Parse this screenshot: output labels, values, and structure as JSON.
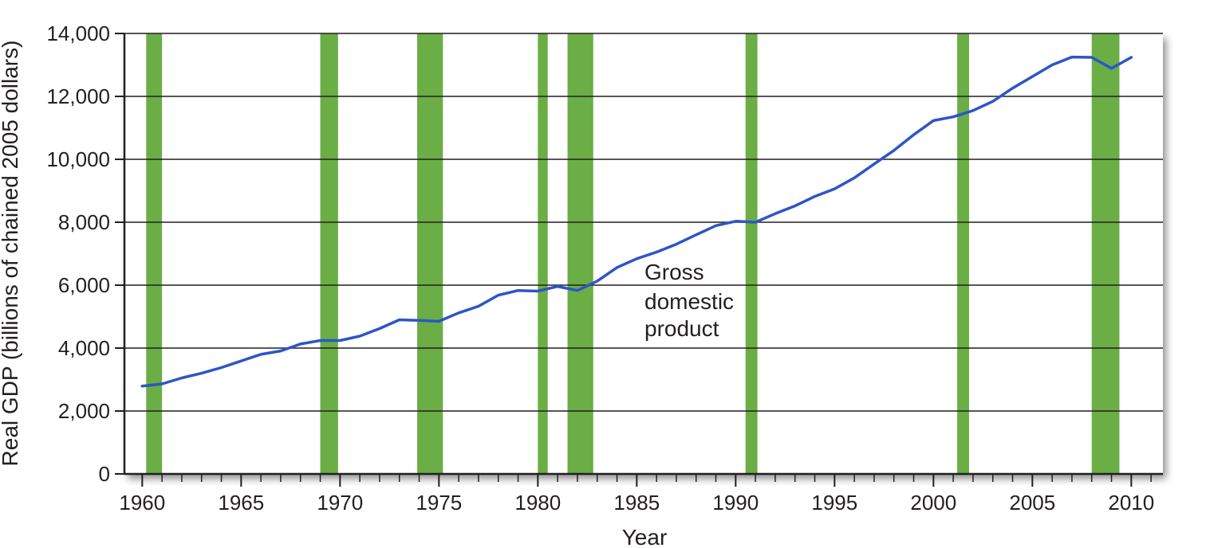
{
  "colors": {
    "line": "#2e55c7",
    "recession": "#6aae45",
    "grid": "#231f20",
    "axis": "#231f20"
  },
  "chart_data": {
    "type": "line",
    "title": "",
    "xlabel": "Year",
    "ylabel": "Real GDP (billions of chained 2005 dollars)",
    "xlim": [
      1959.1,
      2011.6
    ],
    "ylim": [
      0,
      14000
    ],
    "x_ticks": [
      1960,
      1965,
      1970,
      1975,
      1980,
      1985,
      1990,
      1995,
      2000,
      2005,
      2010
    ],
    "y_ticks": [
      0,
      2000,
      4000,
      6000,
      8000,
      10000,
      12000,
      14000
    ],
    "y_tick_labels": [
      "0",
      "2,000",
      "4,000",
      "6,000",
      "8,000",
      "10,000",
      "12,000",
      "14,000"
    ],
    "grid": "horizontal",
    "annotation": [
      "Gross",
      "domestic",
      "product"
    ],
    "recessions": [
      [
        1960.2,
        1961.0
      ],
      [
        1969.0,
        1969.9
      ],
      [
        1973.9,
        1975.2
      ],
      [
        1980.0,
        1980.5
      ],
      [
        1981.5,
        1982.8
      ],
      [
        1990.5,
        1991.1
      ],
      [
        2001.2,
        2001.8
      ],
      [
        2008.0,
        2009.4
      ]
    ],
    "series": [
      {
        "name": "Gross domestic product",
        "x": [
          1960,
          1961,
          1962,
          1963,
          1964,
          1965,
          1966,
          1967,
          1968,
          1969,
          1970,
          1971,
          1972,
          1973,
          1974,
          1975,
          1976,
          1977,
          1978,
          1979,
          1980,
          1981,
          1982,
          1983,
          1984,
          1985,
          1986,
          1987,
          1988,
          1989,
          1990,
          1991,
          1992,
          1993,
          1994,
          1995,
          1996,
          1997,
          1998,
          1999,
          2000,
          2001,
          2002,
          2003,
          2004,
          2005,
          2006,
          2007,
          2008,
          2009,
          2010
        ],
        "values": [
          2790,
          2860,
          3050,
          3200,
          3380,
          3590,
          3800,
          3910,
          4130,
          4240,
          4240,
          4380,
          4620,
          4900,
          4880,
          4850,
          5120,
          5330,
          5680,
          5830,
          5810,
          5960,
          5830,
          6130,
          6560,
          6840,
          7050,
          7300,
          7600,
          7890,
          8030,
          8000,
          8270,
          8520,
          8820,
          9060,
          9410,
          9850,
          10280,
          10780,
          11230,
          11350,
          11550,
          11840,
          12260,
          12630,
          13000,
          13250,
          13240,
          12890,
          13240
        ]
      }
    ]
  }
}
